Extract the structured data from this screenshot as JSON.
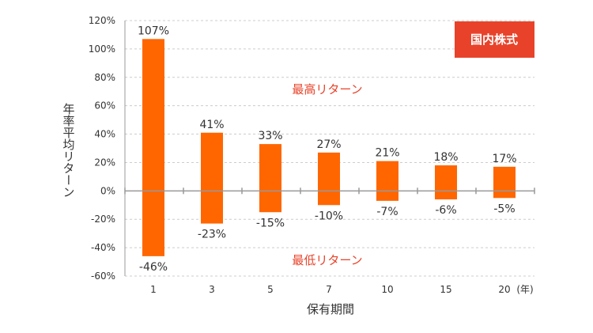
{
  "chart_data": {
    "type": "bar",
    "categories": [
      "1",
      "3",
      "5",
      "7",
      "10",
      "15",
      "20"
    ],
    "x_unit": "(年)",
    "series": [
      {
        "values": [
          107,
          41,
          33,
          27,
          21,
          18,
          17
        ]
      },
      {
        "values": [
          -46,
          -23,
          -15,
          -10,
          -7,
          -6,
          -5
        ]
      }
    ],
    "value_labels_high": [
      "107%",
      "41%",
      "33%",
      "27%",
      "21%",
      "18%",
      "17%"
    ],
    "value_labels_low": [
      "-46%",
      "-23%",
      "-15%",
      "-10%",
      "-7%",
      "-6%",
      "-5%"
    ],
    "ylim": [
      -60,
      120
    ],
    "yticks": [
      120,
      100,
      80,
      60,
      40,
      20,
      0,
      -20,
      -40,
      -60
    ],
    "ytick_labels": [
      "120%",
      "100%",
      "80%",
      "60%",
      "40%",
      "20%",
      "0%",
      "-20%",
      "-40%",
      "-60%"
    ],
    "xlabel": "保有期間",
    "ylabel": "年率平均リターン",
    "annotations": {
      "high": "最高リターン",
      "low": "最低リターン"
    },
    "badge": "国内株式",
    "grid": true,
    "colors": {
      "bar": "#ff6600",
      "badge": "#e8432a",
      "annotation": "#e8432a",
      "grid": "#cccccc",
      "axis": "#999999"
    }
  }
}
